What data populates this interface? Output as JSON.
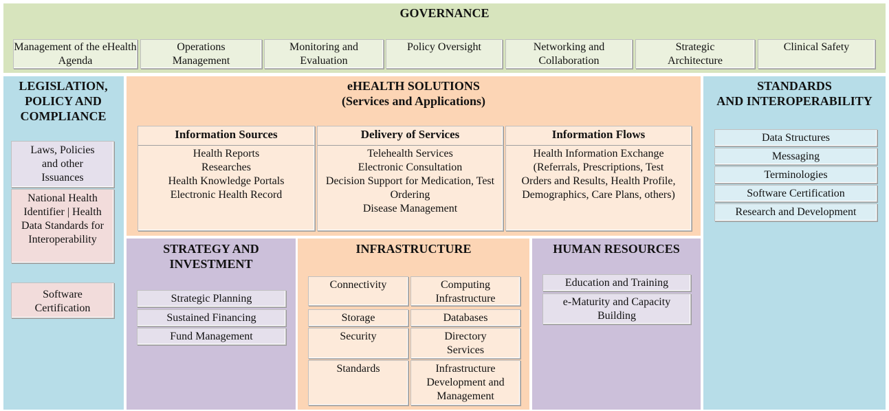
{
  "governance": {
    "title": "GOVERNANCE",
    "items": [
      "Management of the eHealth Agenda",
      "Operations Management",
      "Monitoring and Evaluation",
      "Policy Oversight",
      "Networking and Collaboration",
      "Strategic Architecture",
      "Clinical Safety"
    ]
  },
  "legislation": {
    "title": "LEGISLATION, POLICY AND COMPLIANCE",
    "items": [
      "Laws, Policies and other Issuances",
      "National Health Identifier | Health Data Standards for Interoperability",
      "Software Certification"
    ]
  },
  "solutions": {
    "title_line1": "eHEALTH SOLUTIONS",
    "title_line2": "(Services and Applications)",
    "columns": [
      {
        "header": "Information Sources",
        "lines": [
          "Health Reports",
          "Researches",
          "Health Knowledge Portals",
          "Electronic Health Record"
        ]
      },
      {
        "header": "Delivery of Services",
        "lines": [
          "Telehealth Services",
          "Electronic Consultation",
          "Decision Support for Medication, Test Ordering",
          "Disease Management"
        ]
      },
      {
        "header": "Information Flows",
        "lines": [
          "Health Information Exchange (Referrals, Prescriptions, Test Orders and Results, Health Profile, Demographics, Care Plans, others)"
        ]
      }
    ]
  },
  "standards": {
    "title_line1": "STANDARDS",
    "title_line2": "AND INTEROPERABILITY",
    "items": [
      "Data Structures",
      "Messaging",
      "Terminologies",
      "Software Certification",
      "Research and Development"
    ]
  },
  "strategy": {
    "title": "STRATEGY AND INVESTMENT",
    "items": [
      "Strategic Planning",
      "Sustained Financing",
      "Fund Management"
    ]
  },
  "infrastructure": {
    "title": "INFRASTRUCTURE",
    "items": [
      "Connectivity",
      "Computing Infrastructure",
      "Storage",
      "Databases",
      "Security",
      "Directory Services",
      "Standards",
      "Infrastructure Development and Management"
    ]
  },
  "human_resources": {
    "title": "HUMAN RESOURCES",
    "items": [
      "Education and Training",
      "e-Maturity and Capacity Building"
    ]
  },
  "colors": {
    "governance": "#d7e4bd",
    "blue": "#b7dde8",
    "orange": "#fcd5b5",
    "purple": "#ccc0da",
    "pink": "#f2dcdb"
  }
}
